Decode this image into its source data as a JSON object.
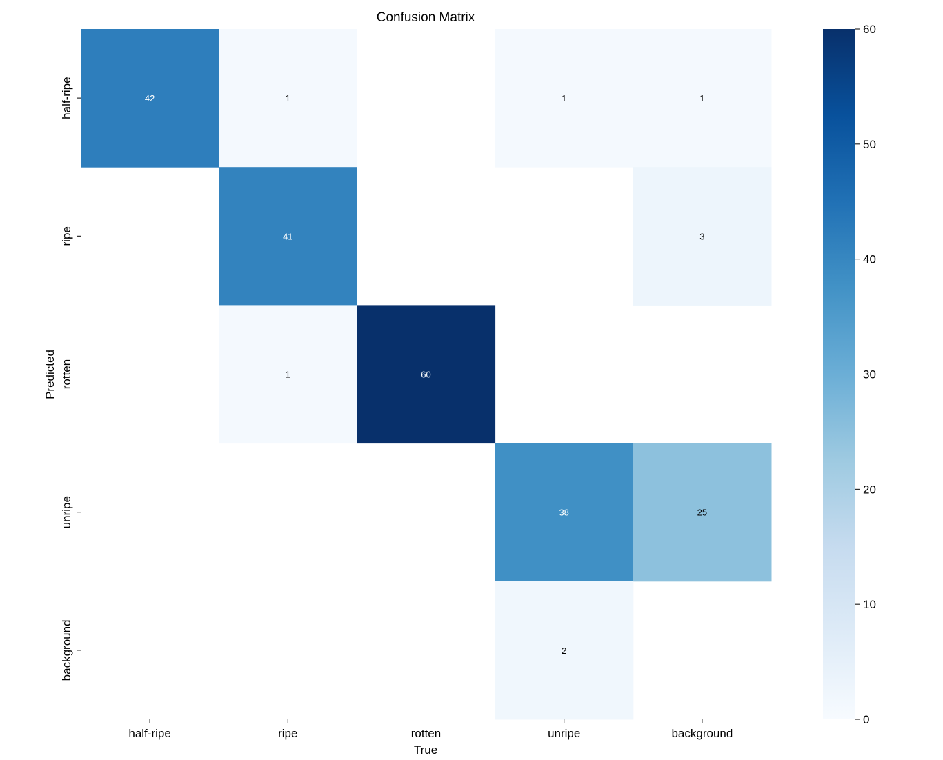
{
  "chart_data": {
    "type": "heatmap",
    "title": "Confusion Matrix",
    "xlabel": "True",
    "ylabel": "Predicted",
    "x_categories": [
      "half-ripe",
      "ripe",
      "rotten",
      "unripe",
      "background"
    ],
    "y_categories": [
      "half-ripe",
      "ripe",
      "rotten",
      "unripe",
      "background"
    ],
    "values": [
      [
        42,
        1,
        0,
        1,
        1
      ],
      [
        0,
        41,
        0,
        0,
        3
      ],
      [
        0,
        1,
        60,
        0,
        0
      ],
      [
        0,
        0,
        0,
        38,
        25
      ],
      [
        0,
        0,
        0,
        2,
        0
      ]
    ],
    "colormap": "Blues",
    "vmin": 0,
    "vmax": 60,
    "colorbar_ticks": [
      0,
      10,
      20,
      30,
      40,
      50,
      60
    ],
    "zero_cells_blank": true
  }
}
